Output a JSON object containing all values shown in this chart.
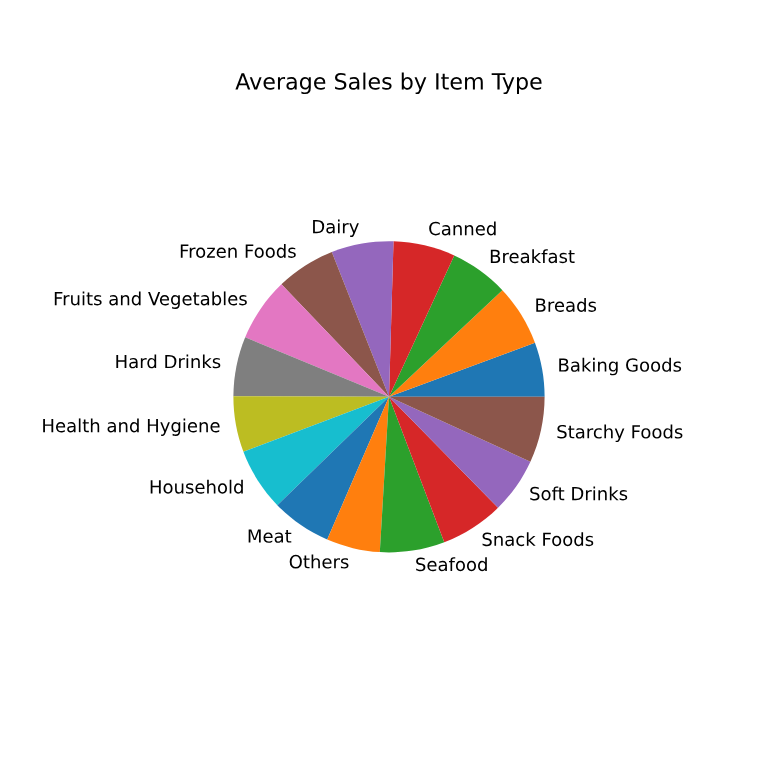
{
  "chart_data": {
    "type": "pie",
    "title": "Average Sales by Item Type",
    "categories": [
      "Baking Goods",
      "Breads",
      "Breakfast",
      "Canned",
      "Dairy",
      "Frozen Foods",
      "Fruits and Vegetables",
      "Hard Drinks",
      "Health and Hygiene",
      "Household",
      "Meat",
      "Others",
      "Seafood",
      "Snack Foods",
      "Soft Drinks",
      "Starchy Foods"
    ],
    "values": [
      5.64,
      6.37,
      6.1,
      6.43,
      6.45,
      6.16,
      6.61,
      6.18,
      5.8,
      6.52,
      6.24,
      5.56,
      6.72,
      6.58,
      5.79,
      6.85
    ],
    "colors": [
      "#1f77b4",
      "#ff7f0e",
      "#2ca02c",
      "#d62728",
      "#9467bd",
      "#8c564b",
      "#e377c2",
      "#7f7f7f",
      "#bcbd22",
      "#17becf",
      "#1f77b4",
      "#ff7f0e",
      "#2ca02c",
      "#d62728",
      "#9467bd",
      "#8c564b"
    ]
  }
}
